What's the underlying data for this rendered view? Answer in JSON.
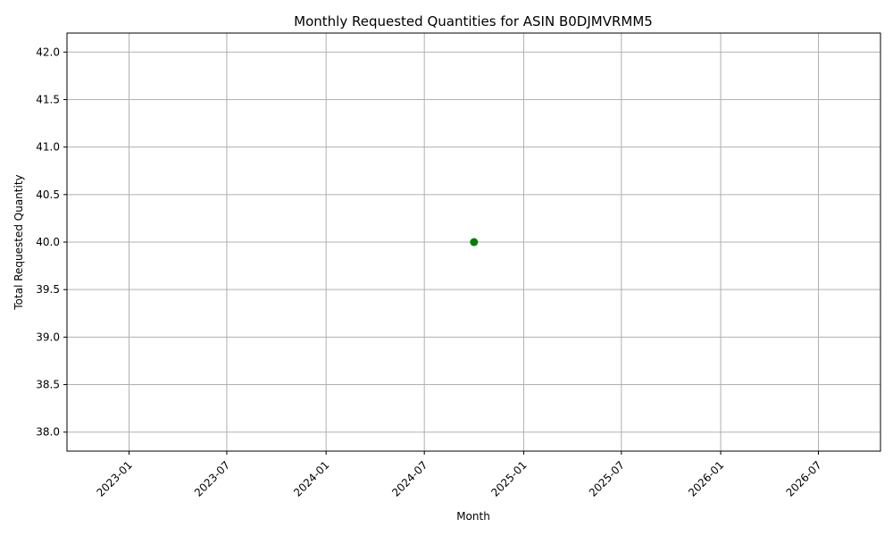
{
  "chart_data": {
    "type": "scatter",
    "title": "Monthly Requested Quantities for ASIN B0DJMVRMM5",
    "xlabel": "Month",
    "ylabel": "Total Requested Quantity",
    "x_ticks": [
      "2023-01",
      "2023-07",
      "2024-01",
      "2024-07",
      "2025-01",
      "2025-07",
      "2026-01",
      "2026-07"
    ],
    "y_ticks": [
      "38.0",
      "38.5",
      "39.0",
      "39.5",
      "40.0",
      "40.5",
      "41.0",
      "41.5",
      "42.0"
    ],
    "xlim": [
      "2022-09-08",
      "2026-10-24"
    ],
    "ylim": [
      37.8,
      42.2
    ],
    "grid": true,
    "series": [
      {
        "color": "#008000",
        "marker": "circle",
        "points": [
          {
            "x": "2024-10-01",
            "y": 40
          }
        ]
      }
    ]
  }
}
